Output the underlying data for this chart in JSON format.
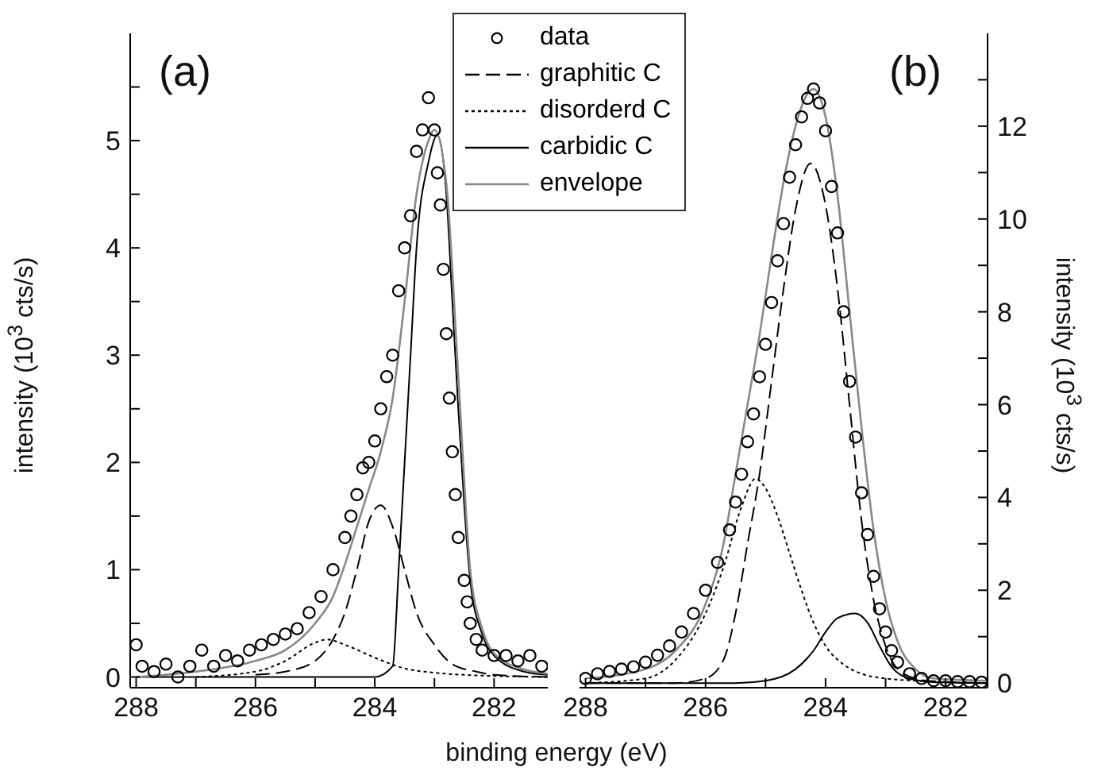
{
  "chart_data": [
    {
      "type": "line",
      "title": "(a)",
      "xlabel": "binding energy (eV)",
      "ylabel": "intensity (10$^{3}$ cts/s)",
      "xlim": [
        288.1,
        281.1
      ],
      "xticks": [
        288,
        {
          "value": 287,
          "label": null
        },
        286,
        {
          "value": 285,
          "label": null
        },
        284,
        {
          "value": 283,
          "label": null
        },
        282
      ],
      "ylim": [
        -0.1,
        6
      ],
      "yticks": [
        0,
        {
          "value": 0.5,
          "label": null
        },
        1,
        {
          "value": 1.5,
          "label": null
        },
        2,
        {
          "value": 2.5,
          "label": null
        },
        3,
        {
          "value": 3.5,
          "label": null
        },
        4,
        {
          "value": 4.5,
          "label": null
        },
        5,
        {
          "value": 5.5,
          "label": null
        }
      ],
      "legend": "top right",
      "series": [
        {
          "name": "data",
          "type": "scatter",
          "marker": "circle",
          "color": "#000000",
          "x": [
            288,
            287.9,
            287.7,
            287.5,
            287.3,
            287.1,
            286.9,
            286.7,
            286.5,
            286.3,
            286.1,
            285.9,
            285.7,
            285.5,
            285.3,
            285.1,
            284.9,
            284.7,
            284.5,
            284.4,
            284.3,
            284.2,
            284.1,
            284,
            283.9,
            283.8,
            283.7,
            283.6,
            283.5,
            283.4,
            283.3,
            283.2,
            283.1,
            283,
            282.95,
            282.9,
            282.85,
            282.8,
            282.75,
            282.7,
            282.65,
            282.6,
            282.5,
            282.45,
            282.4,
            282.3,
            282.2,
            282,
            281.8,
            281.6,
            281.4,
            281.2
          ],
          "values": [
            0.3,
            0.1,
            0.05,
            0.12,
            0,
            0.1,
            0.25,
            0.1,
            0.2,
            0.15,
            0.25,
            0.3,
            0.35,
            0.4,
            0.45,
            0.6,
            0.75,
            1,
            1.3,
            1.5,
            1.7,
            1.95,
            2,
            2.2,
            2.5,
            2.8,
            3,
            3.6,
            4,
            4.3,
            4.9,
            5.1,
            5.4,
            5.1,
            4.7,
            4.4,
            3.8,
            3.2,
            2.6,
            2.1,
            1.7,
            1.3,
            0.9,
            0.7,
            0.5,
            0.35,
            0.25,
            0.2,
            0.2,
            0.15,
            0.2,
            0.1
          ]
        },
        {
          "name": "graphitic C",
          "marker": "none",
          "line_style": "dashed",
          "color": "#000000",
          "x": [
            286,
            285.5,
            285,
            284.7,
            284.5,
            284.3,
            284.1,
            283.9,
            283.7,
            283.5,
            283.3,
            283,
            282.7,
            282.3,
            282,
            281.1
          ],
          "values": [
            0.02,
            0.05,
            0.15,
            0.35,
            0.6,
            1,
            1.45,
            1.6,
            1.4,
            1,
            0.6,
            0.3,
            0.12,
            0.05,
            0.02,
            0
          ]
        },
        {
          "name": "disorderd C",
          "marker": "none",
          "line_style": "dotted",
          "color": "#000000",
          "x": [
            287,
            286,
            285.5,
            285,
            284.8,
            284.5,
            284,
            283.5,
            283,
            282.5,
            281.1
          ],
          "values": [
            0,
            0.05,
            0.15,
            0.32,
            0.35,
            0.3,
            0.18,
            0.08,
            0.04,
            0.02,
            0
          ]
        },
        {
          "name": "carbidic C",
          "marker": "none",
          "line_style": "solid",
          "color": "#000000",
          "x": [
            288,
            284,
            283.7,
            283.6,
            283.5,
            283.4,
            283.3,
            283.1,
            282.95,
            282.8,
            282.7,
            282.6,
            282.5,
            282.4,
            282.2,
            282,
            281.5,
            281.1
          ],
          "values": [
            0,
            0,
            0.1,
            1,
            2,
            3,
            4,
            4.8,
            5.05,
            4.5,
            3.5,
            2.5,
            1.6,
            0.9,
            0.4,
            0.2,
            0.05,
            0.02
          ]
        },
        {
          "name": "envelope",
          "marker": "none",
          "line_style": "solid",
          "color": "#888888",
          "x": [
            288,
            287,
            286,
            285.5,
            285,
            284.7,
            284.5,
            284.3,
            284.1,
            283.9,
            283.7,
            283.5,
            283.3,
            283.1,
            283,
            282.8,
            282.6,
            282.4,
            282.2,
            282,
            281.5,
            281.1
          ],
          "values": [
            0,
            0.05,
            0.15,
            0.25,
            0.5,
            0.75,
            1.05,
            1.4,
            1.75,
            2.1,
            2.6,
            3.5,
            4.5,
            5,
            5.1,
            4.6,
            2.8,
            1,
            0.45,
            0.22,
            0.07,
            0.03
          ]
        }
      ]
    },
    {
      "type": "line",
      "title": "(b)",
      "ylabel": "intensity (10$^{3}$ cts/s)",
      "xlim": [
        288.1,
        281.3
      ],
      "xticks": [
        288,
        {
          "value": 287,
          "label": null
        },
        286,
        {
          "value": 285,
          "label": null
        },
        284,
        {
          "value": 283,
          "label": null
        },
        282
      ],
      "ylim": [
        -0.1,
        14
      ],
      "yticks": [
        0,
        {
          "value": 1,
          "label": null
        },
        2,
        {
          "value": 3,
          "label": null
        },
        4,
        {
          "value": 5,
          "label": null
        },
        6,
        {
          "value": 7,
          "label": null
        },
        8,
        {
          "value": 9,
          "label": null
        },
        10,
        {
          "value": 11,
          "label": null
        },
        12,
        {
          "value": 13,
          "label": null
        }
      ],
      "series": [
        {
          "type": "scatter",
          "marker": "circle",
          "color": "#000000",
          "x": [
            288,
            287.8,
            287.6,
            287.4,
            287.2,
            287,
            286.8,
            286.6,
            286.4,
            286.2,
            286,
            285.8,
            285.6,
            285.5,
            285.4,
            285.3,
            285.2,
            285.1,
            285,
            284.9,
            284.8,
            284.7,
            284.6,
            284.5,
            284.4,
            284.3,
            284.2,
            284.1,
            284,
            283.9,
            283.8,
            283.7,
            283.6,
            283.5,
            283.4,
            283.3,
            283.2,
            283.1,
            283,
            282.9,
            282.8,
            282.6,
            282.4,
            282.2,
            282,
            281.8,
            281.6,
            281.4
          ],
          "values": [
            0.1,
            0.2,
            0.25,
            0.3,
            0.35,
            0.45,
            0.6,
            0.8,
            1.1,
            1.5,
            2,
            2.6,
            3.3,
            3.9,
            4.5,
            5.2,
            5.8,
            6.6,
            7.3,
            8.2,
            9.1,
            9.9,
            10.9,
            11.6,
            12.2,
            12.6,
            12.8,
            12.5,
            11.9,
            10.7,
            9.7,
            8,
            6.5,
            5.3,
            4.1,
            3.2,
            2.3,
            1.6,
            1.1,
            0.7,
            0.45,
            0.2,
            0.1,
            0.05,
            0.05,
            0.03,
            0.03,
            0.02
          ]
        },
        {
          "marker": "none",
          "line_style": "dashed",
          "color": "#000000",
          "x": [
            288,
            286.5,
            286,
            285.7,
            285.5,
            285.3,
            285.1,
            284.9,
            284.7,
            284.5,
            284.25,
            284,
            283.8,
            283.6,
            283.4,
            283.2,
            283,
            282.7,
            282.3,
            281.3
          ],
          "values": [
            0,
            0,
            0.1,
            0.5,
            1.5,
            3,
            4.5,
            6.5,
            8.5,
            10.2,
            11.2,
            10.3,
            8.5,
            6,
            3.5,
            1.8,
            0.8,
            0.2,
            0.05,
            0
          ]
        },
        {
          "marker": "none",
          "line_style": "dotted",
          "color": "#000000",
          "x": [
            288,
            287,
            286.5,
            286,
            285.7,
            285.4,
            285.17,
            285,
            284.8,
            284.6,
            284.4,
            284.2,
            284,
            283.7,
            283.4,
            283,
            282.5,
            281.3
          ],
          "values": [
            0,
            0.1,
            0.5,
            1.5,
            2.5,
            3.8,
            4.4,
            4.2,
            3.6,
            2.8,
            2,
            1.3,
            0.8,
            0.4,
            0.2,
            0.1,
            0.05,
            0
          ]
        },
        {
          "marker": "none",
          "line_style": "solid",
          "color": "#000000",
          "x": [
            288,
            285.5,
            285,
            284.5,
            284.2,
            284,
            283.8,
            283.5,
            283.3,
            283.1,
            282.9,
            282.6,
            282.2,
            281.3
          ],
          "values": [
            0,
            0,
            0.05,
            0.3,
            0.7,
            1.1,
            1.4,
            1.5,
            1.3,
            0.8,
            0.35,
            0.1,
            0.02,
            0
          ]
        },
        {
          "marker": "none",
          "line_style": "solid",
          "color": "#888888",
          "x": [
            288,
            287,
            286.5,
            286,
            285.7,
            285.5,
            285.3,
            285.1,
            284.9,
            284.7,
            284.5,
            284.3,
            284.2,
            284,
            283.8,
            283.6,
            283.4,
            283.2,
            283,
            282.8,
            282.5,
            282.2,
            281.3
          ],
          "values": [
            0.1,
            0.3,
            0.7,
            1.7,
            3,
            4.5,
            6,
            7.5,
            9.2,
            10.8,
            12,
            12.7,
            12.8,
            12.2,
            10.5,
            8,
            5.5,
            3.3,
            1.8,
            0.9,
            0.3,
            0.1,
            0.05
          ]
        }
      ]
    }
  ]
}
